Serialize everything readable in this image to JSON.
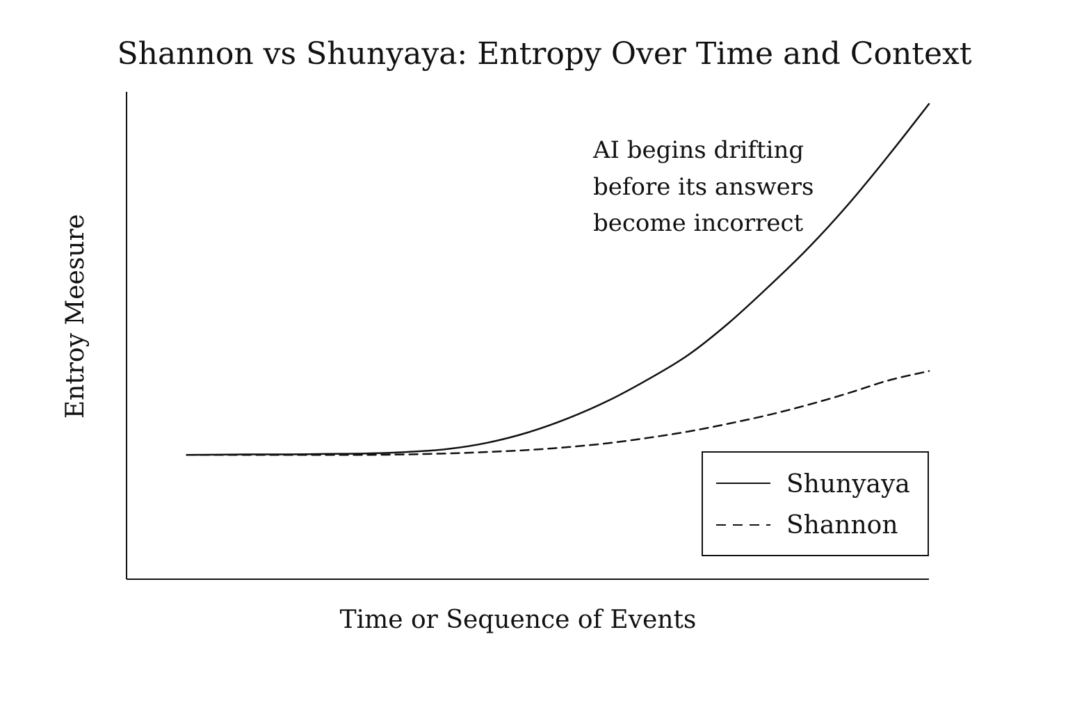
{
  "chart_data": {
    "type": "line",
    "title": "Shannon vs Shunyaya: Entropy Over Time and Context",
    "xlabel": "Time or Sequence of Events",
    "ylabel": "Entroy Meesure",
    "xlim": [
      0,
      1
    ],
    "ylim": [
      0,
      1
    ],
    "grid": false,
    "legend_position": "bottom-right",
    "annotation": {
      "lines": [
        "AI begins drifting",
        "before its answers",
        "become incorrect"
      ]
    },
    "x": [
      0.075,
      0.15,
      0.2,
      0.25,
      0.3,
      0.35,
      0.4,
      0.45,
      0.5,
      0.55,
      0.6,
      0.65,
      0.7,
      0.75,
      0.8,
      0.85,
      0.9,
      0.95,
      1.0
    ],
    "series": [
      {
        "name": "Shunyaya",
        "style": "solid",
        "color": "#111111",
        "values": [
          0.255,
          0.256,
          0.256,
          0.257,
          0.258,
          0.261,
          0.267,
          0.28,
          0.301,
          0.33,
          0.366,
          0.41,
          0.46,
          0.525,
          0.6,
          0.68,
          0.77,
          0.87,
          0.975
        ]
      },
      {
        "name": "Shannon",
        "style": "dashed",
        "color": "#111111",
        "values": [
          0.255,
          0.255,
          0.255,
          0.255,
          0.255,
          0.256,
          0.258,
          0.261,
          0.265,
          0.271,
          0.279,
          0.29,
          0.303,
          0.319,
          0.337,
          0.358,
          0.382,
          0.408,
          0.427
        ]
      }
    ]
  }
}
